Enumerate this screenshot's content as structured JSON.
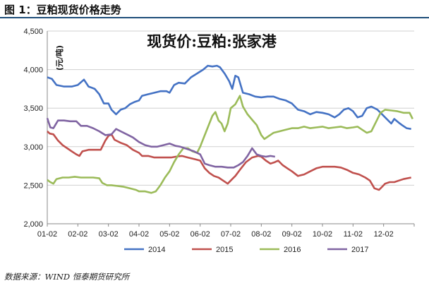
{
  "figure": {
    "title": "图 1：豆粕现货价格走势",
    "source": "数据来源：WIND 恒泰期货研究所"
  },
  "chart_data": {
    "type": "line",
    "title": "现货价:豆粕:张家港",
    "ylabel": "(元/吨)",
    "xlabel": "",
    "ylim": [
      2000,
      4500
    ],
    "yticks": [
      "2,000",
      "2,500",
      "3,000",
      "3,500",
      "4,000",
      "4,500"
    ],
    "xticks": [
      "01-02",
      "02-02",
      "03-02",
      "04-02",
      "05-02",
      "06-02",
      "07-02",
      "08-02",
      "09-02",
      "10-02",
      "11-02",
      "12-02"
    ],
    "grid": true,
    "legend_position": "bottom",
    "series": [
      {
        "name": "2014",
        "color": "#4472c4",
        "points": [
          [
            0.0,
            3900
          ],
          [
            0.15,
            3880
          ],
          [
            0.3,
            3800
          ],
          [
            0.55,
            3780
          ],
          [
            0.8,
            3780
          ],
          [
            1.0,
            3800
          ],
          [
            1.2,
            3870
          ],
          [
            1.35,
            3780
          ],
          [
            1.55,
            3750
          ],
          [
            1.7,
            3680
          ],
          [
            1.85,
            3560
          ],
          [
            2.0,
            3560
          ],
          [
            2.1,
            3480
          ],
          [
            2.25,
            3420
          ],
          [
            2.4,
            3480
          ],
          [
            2.55,
            3500
          ],
          [
            2.7,
            3550
          ],
          [
            2.85,
            3580
          ],
          [
            3.0,
            3600
          ],
          [
            3.1,
            3660
          ],
          [
            3.3,
            3680
          ],
          [
            3.5,
            3700
          ],
          [
            3.7,
            3720
          ],
          [
            3.9,
            3720
          ],
          [
            4.0,
            3700
          ],
          [
            4.15,
            3800
          ],
          [
            4.3,
            3830
          ],
          [
            4.5,
            3820
          ],
          [
            4.7,
            3900
          ],
          [
            4.9,
            3950
          ],
          [
            5.1,
            4000
          ],
          [
            5.25,
            4050
          ],
          [
            5.4,
            4040
          ],
          [
            5.55,
            4050
          ],
          [
            5.65,
            4030
          ],
          [
            5.8,
            3950
          ],
          [
            5.95,
            3850
          ],
          [
            6.05,
            3750
          ],
          [
            6.15,
            3920
          ],
          [
            6.25,
            3900
          ],
          [
            6.4,
            3700
          ],
          [
            6.6,
            3680
          ],
          [
            6.8,
            3650
          ],
          [
            7.0,
            3640
          ],
          [
            7.2,
            3650
          ],
          [
            7.4,
            3650
          ],
          [
            7.6,
            3620
          ],
          [
            7.8,
            3600
          ],
          [
            8.0,
            3560
          ],
          [
            8.2,
            3480
          ],
          [
            8.4,
            3460
          ],
          [
            8.6,
            3420
          ],
          [
            8.8,
            3450
          ],
          [
            9.0,
            3440
          ],
          [
            9.2,
            3420
          ],
          [
            9.4,
            3380
          ],
          [
            9.55,
            3420
          ],
          [
            9.7,
            3480
          ],
          [
            9.85,
            3500
          ],
          [
            10.0,
            3460
          ],
          [
            10.15,
            3380
          ],
          [
            10.3,
            3400
          ],
          [
            10.45,
            3500
          ],
          [
            10.6,
            3520
          ],
          [
            10.8,
            3480
          ],
          [
            10.95,
            3420
          ],
          [
            11.1,
            3360
          ],
          [
            11.25,
            3300
          ],
          [
            11.35,
            3360
          ],
          [
            11.5,
            3310
          ],
          [
            11.6,
            3280
          ],
          [
            11.75,
            3240
          ],
          [
            11.9,
            3230
          ]
        ]
      },
      {
        "name": "2015",
        "color": "#c0504d",
        "points": [
          [
            0.0,
            3200
          ],
          [
            0.08,
            3170
          ],
          [
            0.2,
            3160
          ],
          [
            0.35,
            3080
          ],
          [
            0.5,
            3020
          ],
          [
            0.65,
            2980
          ],
          [
            0.8,
            2940
          ],
          [
            0.95,
            2900
          ],
          [
            1.05,
            2880
          ],
          [
            1.15,
            2940
          ],
          [
            1.35,
            2960
          ],
          [
            1.55,
            2960
          ],
          [
            1.75,
            2960
          ],
          [
            1.9,
            3080
          ],
          [
            2.0,
            3140
          ],
          [
            2.1,
            3160
          ],
          [
            2.2,
            3090
          ],
          [
            2.4,
            3050
          ],
          [
            2.6,
            3020
          ],
          [
            2.8,
            2960
          ],
          [
            3.0,
            2920
          ],
          [
            3.1,
            2880
          ],
          [
            3.3,
            2880
          ],
          [
            3.5,
            2860
          ],
          [
            3.7,
            2860
          ],
          [
            3.9,
            2860
          ],
          [
            4.05,
            2860
          ],
          [
            4.2,
            2870
          ],
          [
            4.4,
            2880
          ],
          [
            4.6,
            2860
          ],
          [
            4.8,
            2840
          ],
          [
            5.0,
            2820
          ],
          [
            5.15,
            2720
          ],
          [
            5.3,
            2660
          ],
          [
            5.45,
            2620
          ],
          [
            5.6,
            2600
          ],
          [
            5.75,
            2560
          ],
          [
            5.9,
            2520
          ],
          [
            6.0,
            2560
          ],
          [
            6.15,
            2620
          ],
          [
            6.3,
            2700
          ],
          [
            6.5,
            2800
          ],
          [
            6.7,
            2860
          ],
          [
            6.9,
            2880
          ],
          [
            7.0,
            2870
          ],
          [
            7.15,
            2820
          ],
          [
            7.3,
            2780
          ],
          [
            7.45,
            2800
          ],
          [
            7.55,
            2820
          ],
          [
            7.7,
            2760
          ],
          [
            7.85,
            2720
          ],
          [
            8.0,
            2680
          ],
          [
            8.2,
            2620
          ],
          [
            8.4,
            2640
          ],
          [
            8.6,
            2680
          ],
          [
            8.8,
            2720
          ],
          [
            9.0,
            2740
          ],
          [
            9.2,
            2740
          ],
          [
            9.4,
            2740
          ],
          [
            9.6,
            2730
          ],
          [
            9.8,
            2700
          ],
          [
            10.0,
            2660
          ],
          [
            10.2,
            2640
          ],
          [
            10.4,
            2600
          ],
          [
            10.55,
            2560
          ],
          [
            10.7,
            2460
          ],
          [
            10.85,
            2440
          ],
          [
            10.95,
            2480
          ],
          [
            11.05,
            2520
          ],
          [
            11.2,
            2540
          ],
          [
            11.35,
            2540
          ],
          [
            11.5,
            2560
          ],
          [
            11.65,
            2580
          ],
          [
            11.9,
            2600
          ]
        ]
      },
      {
        "name": "2016",
        "color": "#9bbb59",
        "points": [
          [
            0.0,
            2570
          ],
          [
            0.1,
            2540
          ],
          [
            0.2,
            2520
          ],
          [
            0.3,
            2580
          ],
          [
            0.5,
            2600
          ],
          [
            0.7,
            2600
          ],
          [
            0.9,
            2610
          ],
          [
            1.1,
            2600
          ],
          [
            1.3,
            2600
          ],
          [
            1.5,
            2600
          ],
          [
            1.7,
            2590
          ],
          [
            1.8,
            2530
          ],
          [
            1.95,
            2500
          ],
          [
            2.1,
            2500
          ],
          [
            2.3,
            2490
          ],
          [
            2.5,
            2480
          ],
          [
            2.7,
            2460
          ],
          [
            2.9,
            2440
          ],
          [
            3.0,
            2420
          ],
          [
            3.2,
            2420
          ],
          [
            3.4,
            2400
          ],
          [
            3.55,
            2420
          ],
          [
            3.7,
            2500
          ],
          [
            3.85,
            2600
          ],
          [
            4.0,
            2680
          ],
          [
            4.15,
            2800
          ],
          [
            4.3,
            2900
          ],
          [
            4.45,
            2980
          ],
          [
            4.6,
            2980
          ],
          [
            4.75,
            2940
          ],
          [
            4.9,
            2920
          ],
          [
            5.0,
            3000
          ],
          [
            5.1,
            3100
          ],
          [
            5.25,
            3250
          ],
          [
            5.4,
            3400
          ],
          [
            5.5,
            3450
          ],
          [
            5.6,
            3340
          ],
          [
            5.7,
            3300
          ],
          [
            5.8,
            3200
          ],
          [
            5.9,
            3300
          ],
          [
            6.0,
            3500
          ],
          [
            6.15,
            3550
          ],
          [
            6.3,
            3660
          ],
          [
            6.4,
            3520
          ],
          [
            6.55,
            3420
          ],
          [
            6.7,
            3350
          ],
          [
            6.85,
            3280
          ],
          [
            7.0,
            3150
          ],
          [
            7.1,
            3100
          ],
          [
            7.25,
            3140
          ],
          [
            7.4,
            3180
          ],
          [
            7.6,
            3200
          ],
          [
            7.8,
            3220
          ],
          [
            8.0,
            3240
          ],
          [
            8.2,
            3240
          ],
          [
            8.4,
            3260
          ],
          [
            8.6,
            3240
          ],
          [
            8.8,
            3250
          ],
          [
            9.0,
            3260
          ],
          [
            9.2,
            3240
          ],
          [
            9.4,
            3250
          ],
          [
            9.6,
            3260
          ],
          [
            9.8,
            3240
          ],
          [
            10.0,
            3250
          ],
          [
            10.15,
            3260
          ],
          [
            10.3,
            3220
          ],
          [
            10.45,
            3180
          ],
          [
            10.6,
            3200
          ],
          [
            10.75,
            3320
          ],
          [
            10.9,
            3440
          ],
          [
            11.05,
            3480
          ],
          [
            11.25,
            3470
          ],
          [
            11.45,
            3460
          ],
          [
            11.65,
            3440
          ],
          [
            11.85,
            3440
          ],
          [
            11.95,
            3360
          ]
        ]
      },
      {
        "name": "2017",
        "color": "#8064a2",
        "points": [
          [
            0.0,
            3370
          ],
          [
            0.1,
            3250
          ],
          [
            0.2,
            3240
          ],
          [
            0.35,
            3340
          ],
          [
            0.55,
            3340
          ],
          [
            0.75,
            3330
          ],
          [
            0.95,
            3330
          ],
          [
            1.1,
            3270
          ],
          [
            1.3,
            3270
          ],
          [
            1.5,
            3240
          ],
          [
            1.7,
            3200
          ],
          [
            1.9,
            3150
          ],
          [
            2.1,
            3160
          ],
          [
            2.25,
            3230
          ],
          [
            2.4,
            3200
          ],
          [
            2.6,
            3160
          ],
          [
            2.8,
            3120
          ],
          [
            3.0,
            3060
          ],
          [
            3.2,
            3020
          ],
          [
            3.4,
            3000
          ],
          [
            3.6,
            3000
          ],
          [
            3.8,
            3020
          ],
          [
            4.0,
            3040
          ],
          [
            4.2,
            3010
          ],
          [
            4.35,
            3000
          ],
          [
            4.5,
            2980
          ],
          [
            4.65,
            2960
          ],
          [
            4.8,
            2940
          ],
          [
            5.0,
            2900
          ],
          [
            5.15,
            2780
          ],
          [
            5.3,
            2760
          ],
          [
            5.5,
            2740
          ],
          [
            5.7,
            2740
          ],
          [
            5.9,
            2730
          ],
          [
            6.1,
            2730
          ],
          [
            6.25,
            2760
          ],
          [
            6.4,
            2800
          ],
          [
            6.55,
            2880
          ],
          [
            6.7,
            2980
          ],
          [
            6.85,
            2900
          ],
          [
            7.0,
            2880
          ],
          [
            7.15,
            2870
          ],
          [
            7.3,
            2880
          ],
          [
            7.45,
            2870
          ]
        ]
      }
    ]
  }
}
